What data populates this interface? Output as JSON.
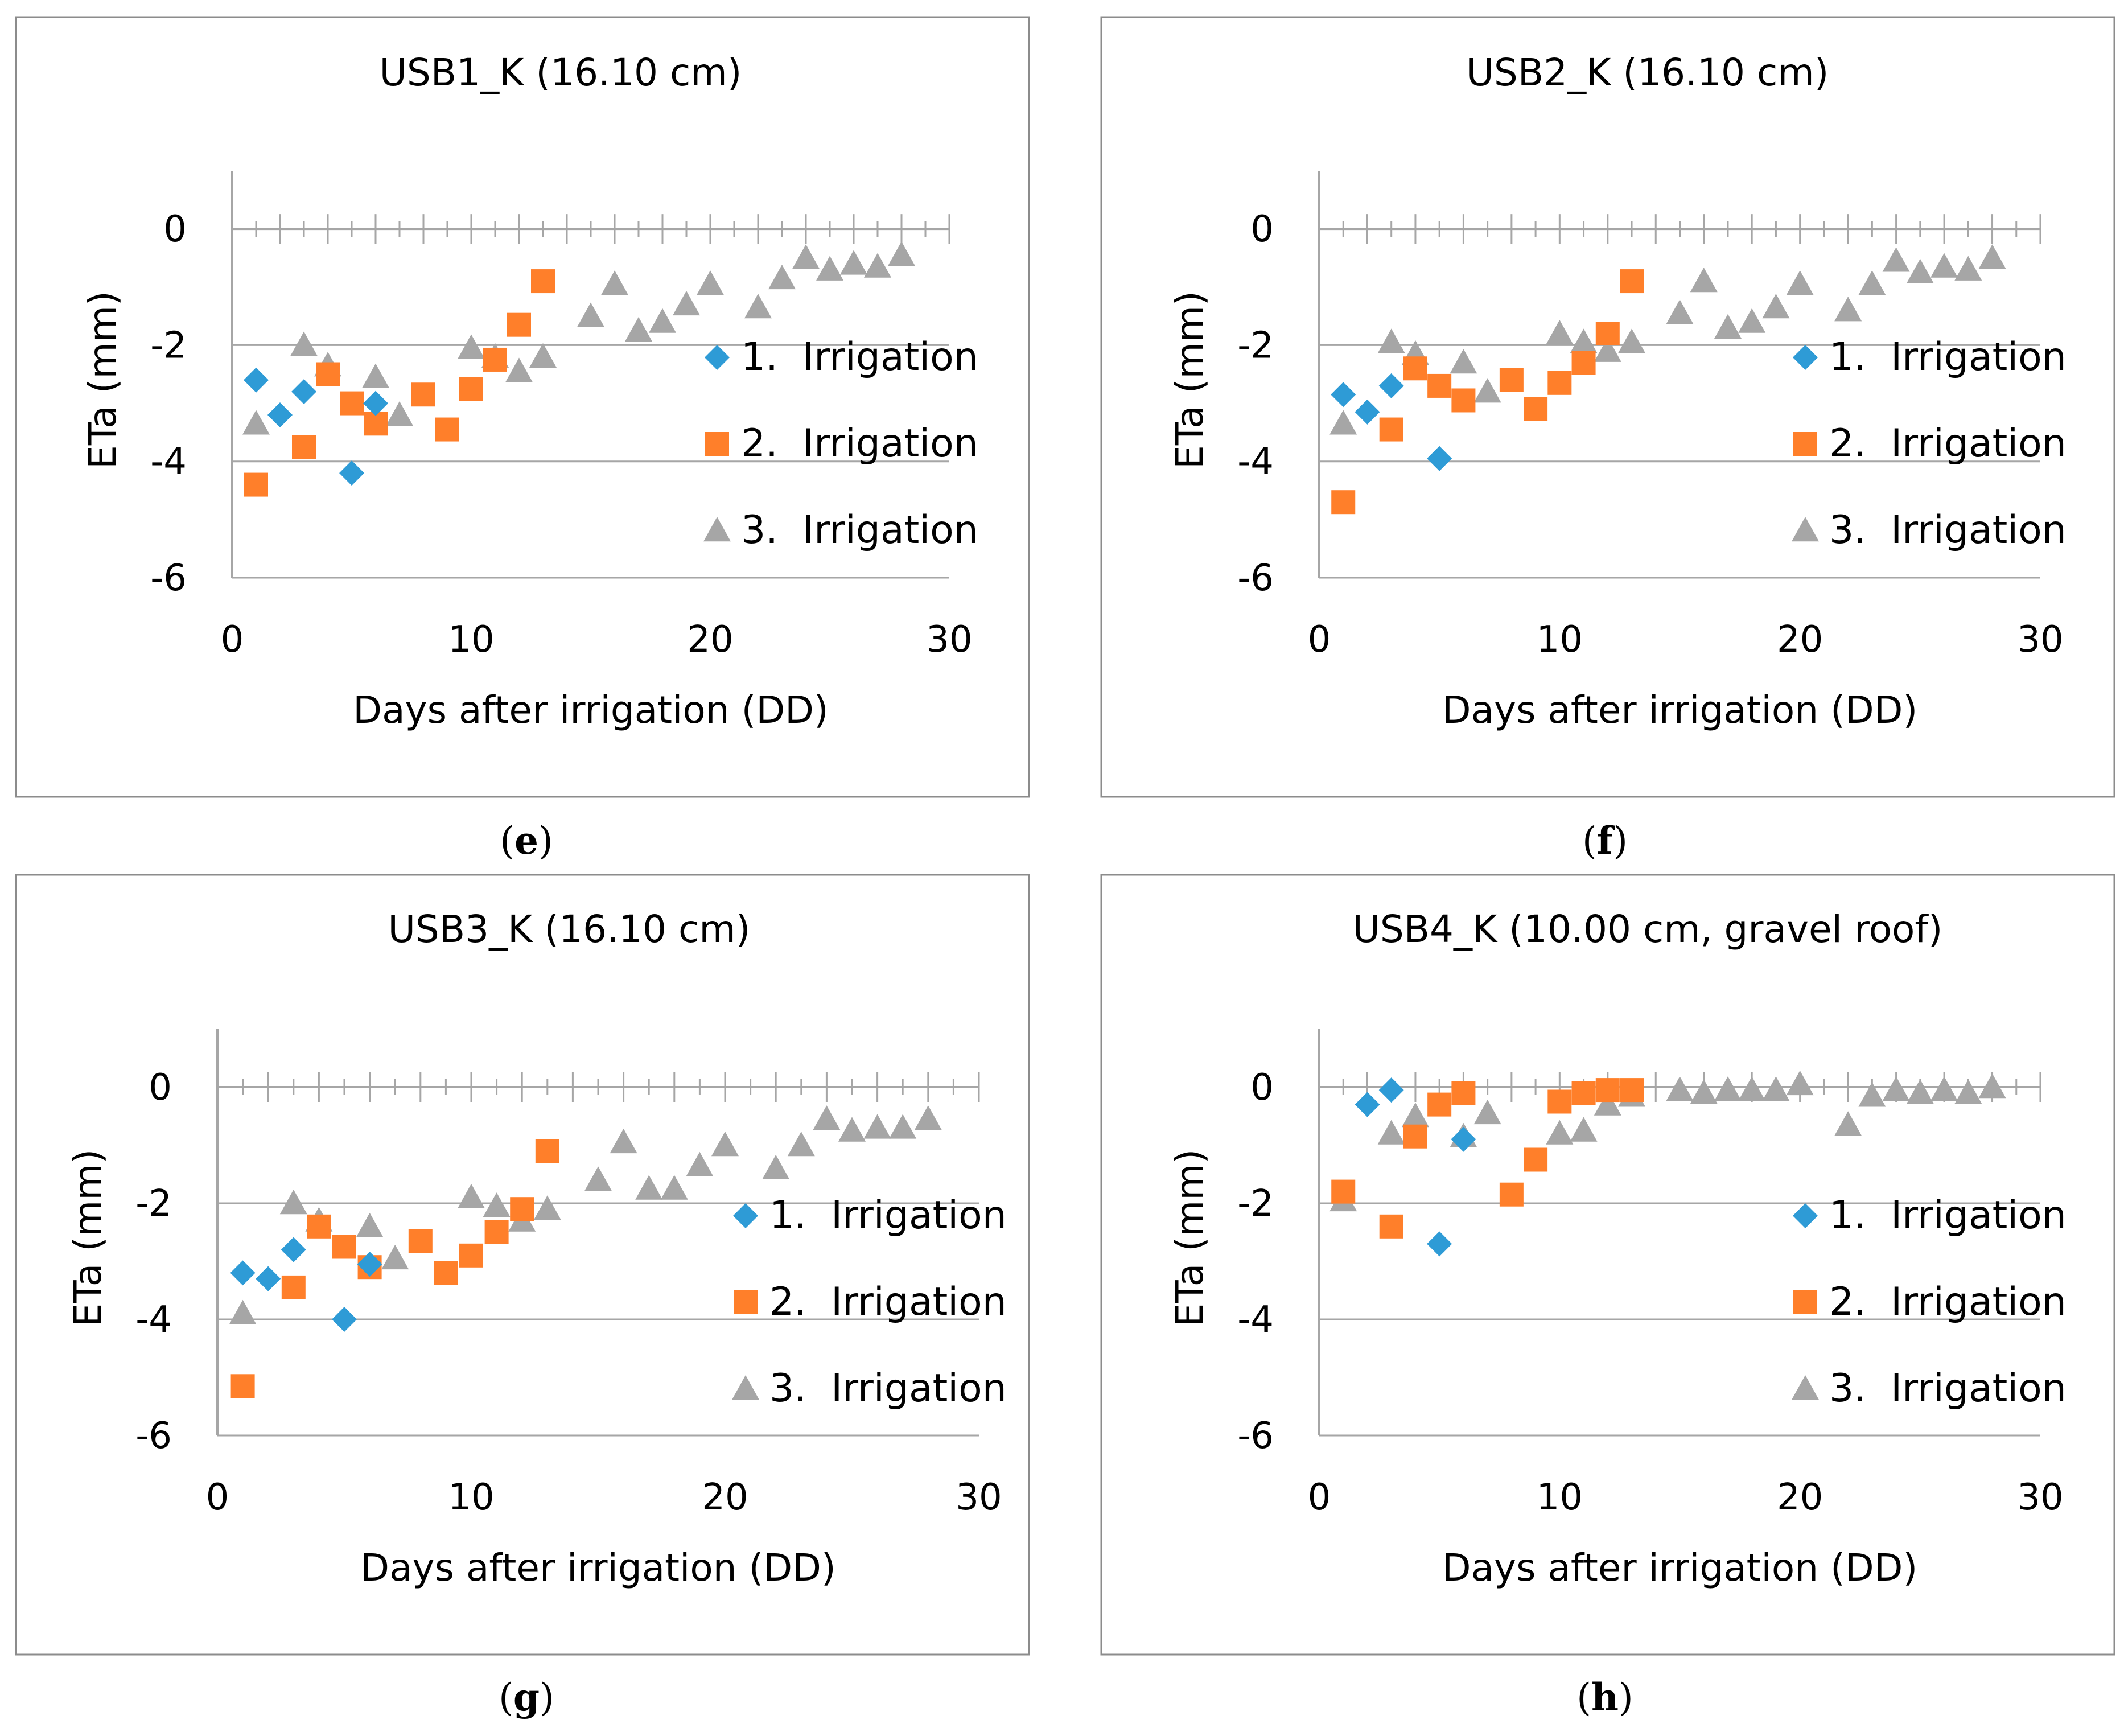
{
  "colors": {
    "series1": "#2E9BD6",
    "series2": "#FF7F2A",
    "series3": "#A6A6A6",
    "grid": "#A6A6A6",
    "frame": "#8C8C8C"
  },
  "chart_data": [
    {
      "type": "scatter",
      "caption_letter": "e",
      "title": "USB1_K (16.10 cm)",
      "xlabel": "Days after irrigation (DD)",
      "ylabel": "ETa (mm)",
      "xlim": [
        0,
        30
      ],
      "ylim": [
        -6,
        1
      ],
      "xticks": [
        "0",
        "10",
        "20",
        "30"
      ],
      "yticks": [
        "0",
        "-2",
        "-4",
        "-6"
      ],
      "legend_position": "right",
      "series": [
        {
          "name": "1.  Irrigation",
          "marker": "diamond",
          "x": [
            1,
            2,
            3,
            5,
            6
          ],
          "y": [
            -2.6,
            -3.2,
            -2.8,
            -4.2,
            -3.0
          ]
        },
        {
          "name": "2.  Irrigation",
          "marker": "square",
          "x": [
            1,
            3,
            4,
            5,
            6,
            8,
            9,
            10,
            11,
            12,
            13
          ],
          "y": [
            -4.4,
            -3.75,
            -2.5,
            -3.0,
            -3.35,
            -2.85,
            -3.45,
            -2.75,
            -2.25,
            -1.65,
            -0.9
          ]
        },
        {
          "name": "3.  Irrigation",
          "marker": "triangle",
          "x": [
            1,
            3,
            4,
            6,
            7,
            10,
            11,
            12,
            13,
            15,
            16,
            17,
            18,
            19,
            20,
            22,
            23,
            24,
            25,
            26,
            27,
            28
          ],
          "y": [
            -3.35,
            -2.0,
            -2.35,
            -2.55,
            -3.2,
            -2.05,
            -2.2,
            -2.45,
            -2.2,
            -1.5,
            -0.95,
            -1.75,
            -1.6,
            -1.3,
            -0.95,
            -1.35,
            -0.85,
            -0.5,
            -0.7,
            -0.6,
            -0.65,
            -0.45
          ]
        }
      ]
    },
    {
      "type": "scatter",
      "caption_letter": "f",
      "title": "USB2_K (16.10 cm)",
      "xlabel": "Days after irrigation (DD)",
      "ylabel": "ETa (mm)",
      "xlim": [
        0,
        30
      ],
      "ylim": [
        -6,
        1
      ],
      "xticks": [
        "0",
        "10",
        "20",
        "30"
      ],
      "yticks": [
        "0",
        "-2",
        "-4",
        "-6"
      ],
      "legend_position": "right",
      "series": [
        {
          "name": "1.  Irrigation",
          "marker": "diamond",
          "x": [
            1,
            2,
            3,
            5
          ],
          "y": [
            -2.85,
            -3.15,
            -2.7,
            -3.95
          ]
        },
        {
          "name": "2.  Irrigation",
          "marker": "square",
          "x": [
            1,
            3,
            4,
            5,
            6,
            8,
            9,
            10,
            11,
            12,
            13
          ],
          "y": [
            -4.7,
            -3.45,
            -2.4,
            -2.7,
            -2.95,
            -2.6,
            -3.1,
            -2.65,
            -2.3,
            -1.8,
            -0.9
          ]
        },
        {
          "name": "3.  Irrigation",
          "marker": "triangle",
          "x": [
            1,
            3,
            4,
            6,
            7,
            10,
            11,
            12,
            13,
            15,
            16,
            17,
            18,
            19,
            20,
            22,
            23,
            24,
            25,
            26,
            27,
            28
          ],
          "y": [
            -3.35,
            -1.95,
            -2.15,
            -2.3,
            -2.8,
            -1.8,
            -1.95,
            -2.1,
            -1.95,
            -1.45,
            -0.9,
            -1.7,
            -1.6,
            -1.35,
            -0.95,
            -1.4,
            -0.95,
            -0.55,
            -0.75,
            -0.65,
            -0.7,
            -0.5
          ]
        }
      ]
    },
    {
      "type": "scatter",
      "caption_letter": "g",
      "title": "USB3_K (16.10 cm)",
      "xlabel": "Days after irrigation (DD)",
      "ylabel": "ETa (mm)",
      "xlim": [
        0,
        30
      ],
      "ylim": [
        -6,
        1
      ],
      "xticks": [
        "0",
        "10",
        "20",
        "30"
      ],
      "yticks": [
        "0",
        "-2",
        "-4",
        "-6"
      ],
      "legend_position": "right",
      "series": [
        {
          "name": "1.  Irrigation",
          "marker": "diamond",
          "x": [
            1,
            2,
            3,
            5,
            6
          ],
          "y": [
            -3.2,
            -3.3,
            -2.8,
            -4.0,
            -3.05
          ]
        },
        {
          "name": "2.  Irrigation",
          "marker": "square",
          "x": [
            1,
            3,
            4,
            5,
            6,
            8,
            9,
            10,
            11,
            12,
            13
          ],
          "y": [
            -5.15,
            -3.45,
            -2.4,
            -2.75,
            -3.1,
            -2.65,
            -3.2,
            -2.9,
            -2.5,
            -2.1,
            -1.1
          ]
        },
        {
          "name": "3.  Irrigation",
          "marker": "triangle",
          "x": [
            1,
            3,
            4,
            6,
            7,
            10,
            11,
            12,
            13,
            15,
            16,
            17,
            18,
            19,
            20,
            22,
            23,
            24,
            25,
            26,
            27,
            28
          ],
          "y": [
            -3.9,
            -2.0,
            -2.3,
            -2.4,
            -2.95,
            -1.9,
            -2.05,
            -2.3,
            -2.1,
            -1.6,
            -0.95,
            -1.75,
            -1.75,
            -1.35,
            -1.0,
            -1.4,
            -1.0,
            -0.55,
            -0.75,
            -0.7,
            -0.7,
            -0.55
          ]
        }
      ]
    },
    {
      "type": "scatter",
      "caption_letter": "h",
      "title": "USB4_K (10.00 cm, gravel roof)",
      "xlabel": "Days after irrigation (DD)",
      "ylabel": "ETa (mm)",
      "xlim": [
        0,
        30
      ],
      "ylim": [
        -6,
        1
      ],
      "xticks": [
        "0",
        "10",
        "20",
        "30"
      ],
      "yticks": [
        "0",
        "-2",
        "-4",
        "-6"
      ],
      "legend_position": "right",
      "series": [
        {
          "name": "1.  Irrigation",
          "marker": "diamond",
          "x": [
            2,
            3,
            5,
            6
          ],
          "y": [
            -0.3,
            -0.05,
            -2.7,
            -0.9
          ]
        },
        {
          "name": "2.  Irrigation",
          "marker": "square",
          "x": [
            1,
            3,
            4,
            5,
            6,
            8,
            9,
            10,
            11,
            12,
            13
          ],
          "y": [
            -1.8,
            -2.4,
            -0.85,
            -0.3,
            -0.1,
            -1.85,
            -1.25,
            -0.25,
            -0.1,
            -0.05,
            -0.05
          ]
        },
        {
          "name": "3.  Irrigation",
          "marker": "triangle",
          "x": [
            1,
            3,
            4,
            6,
            7,
            10,
            11,
            12,
            13,
            15,
            16,
            17,
            18,
            19,
            20,
            22,
            23,
            24,
            25,
            26,
            27,
            28
          ],
          "y": [
            -1.95,
            -0.8,
            -0.5,
            -0.85,
            -0.45,
            -0.8,
            -0.75,
            -0.3,
            -0.15,
            -0.05,
            -0.1,
            -0.05,
            -0.05,
            -0.05,
            0.05,
            -0.65,
            -0.15,
            -0.05,
            -0.1,
            -0.05,
            -0.1,
            0.0
          ]
        }
      ]
    }
  ]
}
